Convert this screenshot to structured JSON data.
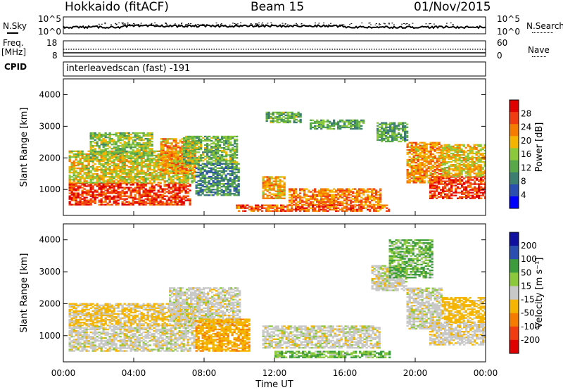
{
  "header": {
    "station": "Hokkaido (fitACF)",
    "beam": "Beam 15",
    "date": "01/Nov/2015"
  },
  "top_panels": {
    "nsky_label": "N.Sky",
    "nsearch_label": "N.Search",
    "noise_ticks_left": [
      "10^5",
      "10^0"
    ],
    "noise_ticks_right": [
      "10^5",
      "10^0"
    ],
    "freq_label": "Freq.",
    "freq_unit": "[MHz]",
    "freq_ticks": [
      "18",
      "8"
    ],
    "nave_label": "Nave",
    "nave_ticks": [
      "60",
      "0"
    ],
    "cpid_label": "CPID",
    "cpid_text": "interleavedscan (fast) -191"
  },
  "chart_data": [
    {
      "type": "heatmap",
      "name": "power",
      "ylabel": "Slant Range [km]",
      "ylim": [
        180,
        4500
      ],
      "yticks": [
        "4000",
        "3000",
        "2000",
        "1000"
      ],
      "xlim": [
        "00:00",
        "24:00"
      ],
      "colorbar_label": "Power [dB]",
      "colorbar_ticks": [
        "28",
        "24",
        "20",
        "16",
        "12",
        "8",
        "4"
      ],
      "colorbar_colors": [
        "#0000ff",
        "#2a4fb0",
        "#3c7f70",
        "#58a84a",
        "#8cc83c",
        "#f4b400",
        "#f57c00",
        "#f03c10",
        "#e00000"
      ],
      "regions": [
        {
          "t0": 0.3,
          "t1": 7.2,
          "r0": 500,
          "r1": 1200,
          "level": 27
        },
        {
          "t0": 0.3,
          "t1": 7.5,
          "r0": 1200,
          "r1": 2200,
          "level": 18
        },
        {
          "t0": 1.5,
          "t1": 5.0,
          "r0": 2000,
          "r1": 2800,
          "level": 15
        },
        {
          "t0": 5.5,
          "t1": 7.5,
          "r0": 1500,
          "r1": 2600,
          "level": 22
        },
        {
          "t0": 6.8,
          "t1": 9.8,
          "r0": 1800,
          "r1": 2700,
          "level": 14
        },
        {
          "t0": 7.5,
          "t1": 10.0,
          "r0": 800,
          "r1": 1800,
          "level": 10
        },
        {
          "t0": 11.3,
          "t1": 12.6,
          "r0": 700,
          "r1": 1400,
          "level": 21
        },
        {
          "t0": 12.8,
          "t1": 18.0,
          "r0": 500,
          "r1": 1000,
          "level": 23
        },
        {
          "t0": 9.8,
          "t1": 18.5,
          "r0": 300,
          "r1": 500,
          "level": 25
        },
        {
          "t0": 11.5,
          "t1": 13.5,
          "r0": 3100,
          "r1": 3450,
          "level": 13
        },
        {
          "t0": 14.0,
          "t1": 17.0,
          "r0": 2900,
          "r1": 3200,
          "level": 12
        },
        {
          "t0": 17.8,
          "t1": 19.5,
          "r0": 2500,
          "r1": 3100,
          "level": 12
        },
        {
          "t0": 19.5,
          "t1": 21.5,
          "r0": 1200,
          "r1": 2500,
          "level": 22
        },
        {
          "t0": 20.8,
          "t1": 24.0,
          "r0": 700,
          "r1": 1400,
          "level": 27
        },
        {
          "t0": 21.5,
          "t1": 24.0,
          "r0": 1400,
          "r1": 2400,
          "level": 19
        }
      ]
    },
    {
      "type": "heatmap",
      "name": "velocity",
      "ylabel": "Slant Range [km]",
      "ylim": [
        180,
        4500
      ],
      "yticks": [
        "4000",
        "3000",
        "2000",
        "1000"
      ],
      "xlim": [
        "00:00",
        "24:00"
      ],
      "xticks": [
        "00:00",
        "04:00",
        "08:00",
        "12:00",
        "16:00",
        "20:00",
        "00:00"
      ],
      "xlabel": "Time UT",
      "colorbar_label": "Velocity [m s⁻¹]",
      "colorbar_ticks": [
        "200",
        "100",
        "50",
        "15",
        "-15",
        "-50",
        "-100",
        "-200"
      ],
      "colorbar_colors": [
        "#e00000",
        "#f03c10",
        "#f57c00",
        "#f4b400",
        "#c8c8c8",
        "#8cc83c",
        "#3c9c3c",
        "#2a4fb0",
        "#1010a0"
      ],
      "regions": [
        {
          "t0": 0.3,
          "t1": 7.5,
          "r0": 500,
          "r1": 1300,
          "level": 0
        },
        {
          "t0": 0.3,
          "t1": 7.5,
          "r0": 1300,
          "r1": 2000,
          "level": -20
        },
        {
          "t0": 6.0,
          "t1": 10.0,
          "r0": 1300,
          "r1": 2500,
          "level": 0
        },
        {
          "t0": 7.5,
          "t1": 10.5,
          "r0": 500,
          "r1": 1500,
          "level": -40
        },
        {
          "t0": 11.3,
          "t1": 18.0,
          "r0": 600,
          "r1": 1300,
          "level": 0
        },
        {
          "t0": 12.0,
          "t1": 18.5,
          "r0": 300,
          "r1": 500,
          "level": 30
        },
        {
          "t0": 17.5,
          "t1": 19.5,
          "r0": 2400,
          "r1": 3200,
          "level": 0
        },
        {
          "t0": 18.5,
          "t1": 21.0,
          "r0": 2800,
          "r1": 4000,
          "level": 30
        },
        {
          "t0": 19.5,
          "t1": 21.5,
          "r0": 1200,
          "r1": 2500,
          "level": 0
        },
        {
          "t0": 20.8,
          "t1": 24.0,
          "r0": 700,
          "r1": 1400,
          "level": -5
        },
        {
          "t0": 21.5,
          "t1": 24.0,
          "r0": 1400,
          "r1": 2200,
          "level": -30
        }
      ]
    }
  ]
}
